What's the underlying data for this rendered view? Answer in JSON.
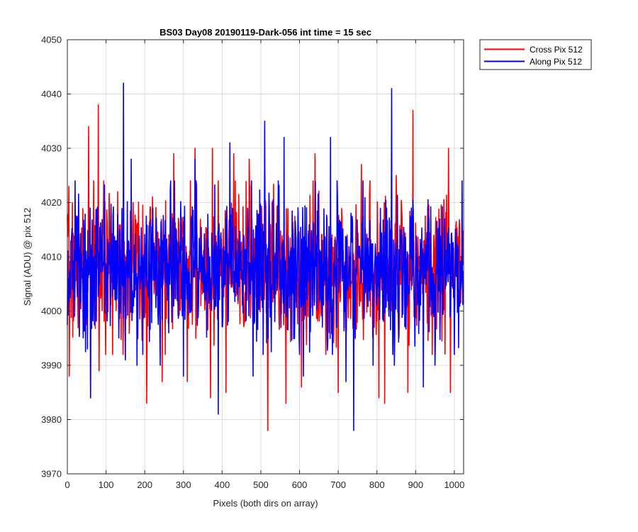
{
  "chart_data": {
    "type": "line",
    "title": "BS03 Day08 20190119-Dark-056 int time = 15 sec",
    "xlabel": "Pixels (both dirs on array)",
    "ylabel": "Signal (ADU) @ pix 512",
    "xlim": [
      0,
      1024
    ],
    "ylim": [
      3970,
      4050
    ],
    "xticks": [
      0,
      100,
      200,
      300,
      400,
      500,
      600,
      700,
      800,
      900,
      1000
    ],
    "yticks": [
      3970,
      3980,
      3990,
      4000,
      4010,
      4020,
      4030,
      4040,
      4050
    ],
    "grid": true,
    "legend_position": "outside top-right",
    "series": [
      {
        "name": "Cross Pix 512",
        "color": "#ff0000",
        "mean": 4008,
        "noise_sd": 6.5,
        "seed": 7,
        "samples": 1024,
        "peaks": [
          {
            "x": 5,
            "y": 3988
          },
          {
            "x": 55,
            "y": 4034
          },
          {
            "x": 60,
            "y": 3984
          },
          {
            "x": 80,
            "y": 4038
          },
          {
            "x": 82,
            "y": 3989
          },
          {
            "x": 130,
            "y": 4022
          },
          {
            "x": 205,
            "y": 3983
          },
          {
            "x": 245,
            "y": 3987
          },
          {
            "x": 275,
            "y": 4029
          },
          {
            "x": 310,
            "y": 3987
          },
          {
            "x": 330,
            "y": 4030
          },
          {
            "x": 370,
            "y": 3984
          },
          {
            "x": 375,
            "y": 4030
          },
          {
            "x": 410,
            "y": 3985
          },
          {
            "x": 430,
            "y": 4029
          },
          {
            "x": 470,
            "y": 4028
          },
          {
            "x": 518,
            "y": 3978
          },
          {
            "x": 565,
            "y": 3983
          },
          {
            "x": 605,
            "y": 3986
          },
          {
            "x": 640,
            "y": 4029
          },
          {
            "x": 700,
            "y": 3985
          },
          {
            "x": 760,
            "y": 4027
          },
          {
            "x": 805,
            "y": 3984
          },
          {
            "x": 820,
            "y": 3983
          },
          {
            "x": 850,
            "y": 4025
          },
          {
            "x": 880,
            "y": 3985
          },
          {
            "x": 893,
            "y": 4037
          },
          {
            "x": 985,
            "y": 4030
          },
          {
            "x": 990,
            "y": 3985
          }
        ]
      },
      {
        "name": "Along Pix 512",
        "color": "#0000ff",
        "mean": 4008,
        "noise_sd": 6.5,
        "seed": 13,
        "samples": 1024,
        "peaks": [
          {
            "x": 20,
            "y": 4024
          },
          {
            "x": 60,
            "y": 3984
          },
          {
            "x": 145,
            "y": 4042
          },
          {
            "x": 150,
            "y": 3991
          },
          {
            "x": 165,
            "y": 4028
          },
          {
            "x": 180,
            "y": 3990
          },
          {
            "x": 240,
            "y": 3990
          },
          {
            "x": 300,
            "y": 3988
          },
          {
            "x": 330,
            "y": 4028
          },
          {
            "x": 390,
            "y": 3981
          },
          {
            "x": 420,
            "y": 4031
          },
          {
            "x": 480,
            "y": 3988
          },
          {
            "x": 510,
            "y": 4035
          },
          {
            "x": 560,
            "y": 4032
          },
          {
            "x": 610,
            "y": 3988
          },
          {
            "x": 680,
            "y": 4032
          },
          {
            "x": 720,
            "y": 3987
          },
          {
            "x": 740,
            "y": 3978
          },
          {
            "x": 790,
            "y": 3990
          },
          {
            "x": 838,
            "y": 4041
          },
          {
            "x": 845,
            "y": 3990
          },
          {
            "x": 920,
            "y": 3986
          },
          {
            "x": 950,
            "y": 3990
          },
          {
            "x": 1000,
            "y": 3992
          },
          {
            "x": 1020,
            "y": 4024
          }
        ]
      }
    ]
  }
}
